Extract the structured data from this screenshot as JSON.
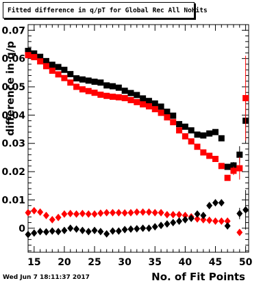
{
  "title": "Fitted difference in q/pT for Global Rec All NoHits",
  "timestamp": "Wed Jun  7 18:11:37 2017",
  "chart_data": {
    "type": "scatter",
    "xlabel": "No. of Fit Points",
    "ylabel": "difference in q/p",
    "xlim": [
      14,
      50.5
    ],
    "ylim": [
      -0.0085,
      0.072
    ],
    "x_ticks": [
      15,
      20,
      25,
      30,
      35,
      40,
      45,
      50
    ],
    "y_ticks": [
      {
        "value": 0,
        "label": "0"
      },
      {
        "value": 0.01,
        "label": "0.01"
      },
      {
        "value": 0.02,
        "label": "0.02"
      },
      {
        "value": 0.03,
        "label": "0.03"
      },
      {
        "value": 0.04,
        "label": "0.04"
      },
      {
        "value": 0.05,
        "label": "0.05"
      },
      {
        "value": 0.06,
        "label": "0.06"
      },
      {
        "value": 0.07,
        "label": "0.07"
      }
    ],
    "grid": false,
    "series": [
      {
        "marker": "square",
        "color": "#000000",
        "x": [
          14,
          15,
          16,
          17,
          18,
          19,
          20,
          21,
          22,
          23,
          24,
          25,
          26,
          27,
          28,
          29,
          30,
          31,
          32,
          33,
          34,
          35,
          36,
          37,
          38,
          39,
          40,
          41,
          42,
          43,
          44,
          45,
          46,
          47,
          48,
          49,
          50
        ],
        "y": [
          0.0627,
          0.0618,
          0.0606,
          0.0591,
          0.0578,
          0.057,
          0.056,
          0.0545,
          0.053,
          0.0526,
          0.0522,
          0.0518,
          0.0515,
          0.0505,
          0.0502,
          0.0497,
          0.0486,
          0.0478,
          0.0471,
          0.0459,
          0.045,
          0.0441,
          0.043,
          0.0412,
          0.0398,
          0.0368,
          0.0359,
          0.0346,
          0.0331,
          0.0328,
          0.0335,
          0.034,
          0.0318,
          0.0217,
          0.0222,
          0.026,
          0.038
        ],
        "err": [
          0,
          0,
          0,
          0,
          0,
          0,
          0,
          0,
          0,
          0,
          0,
          0,
          0,
          0,
          0,
          0,
          0,
          0,
          0,
          0,
          0,
          0,
          0,
          0,
          0,
          0,
          0,
          0,
          0,
          0,
          0,
          0,
          0,
          0.0008,
          0.0012,
          0.003,
          0.008
        ]
      },
      {
        "marker": "square",
        "color": "#ff0000",
        "x": [
          14,
          15,
          16,
          17,
          18,
          19,
          20,
          21,
          22,
          23,
          24,
          25,
          26,
          27,
          28,
          29,
          30,
          31,
          32,
          33,
          34,
          35,
          36,
          37,
          38,
          39,
          40,
          41,
          42,
          43,
          44,
          45,
          46,
          47,
          48,
          49,
          50
        ],
        "y": [
          0.0612,
          0.0605,
          0.059,
          0.0573,
          0.0557,
          0.0544,
          0.0531,
          0.0515,
          0.05,
          0.0491,
          0.0485,
          0.0479,
          0.0472,
          0.0468,
          0.0465,
          0.0463,
          0.046,
          0.0453,
          0.0446,
          0.0438,
          0.0431,
          0.0421,
          0.0408,
          0.0392,
          0.0375,
          0.0346,
          0.0325,
          0.0307,
          0.0288,
          0.0268,
          0.0256,
          0.0245,
          0.022,
          0.0178,
          0.0203,
          0.0212,
          0.046
        ],
        "err": [
          0,
          0,
          0,
          0,
          0,
          0,
          0,
          0,
          0,
          0,
          0,
          0,
          0,
          0,
          0,
          0,
          0,
          0,
          0,
          0,
          0,
          0,
          0,
          0,
          0,
          0,
          0,
          0,
          0,
          0,
          0,
          0,
          0,
          0.001,
          0.0015,
          0.004,
          0.015
        ]
      },
      {
        "marker": "diamond",
        "color": "#ff0000",
        "x": [
          14,
          15,
          16,
          17,
          18,
          19,
          20,
          21,
          22,
          23,
          24,
          25,
          26,
          27,
          28,
          29,
          30,
          31,
          32,
          33,
          34,
          35,
          36,
          37,
          38,
          39,
          40,
          41,
          42,
          43,
          44,
          45,
          46,
          47,
          49
        ],
        "y": [
          0.0055,
          0.0062,
          0.0057,
          0.0045,
          0.003,
          0.0038,
          0.005,
          0.0052,
          0.005,
          0.0052,
          0.005,
          0.005,
          0.0053,
          0.0055,
          0.0055,
          0.0055,
          0.0054,
          0.0055,
          0.0057,
          0.0057,
          0.0057,
          0.0055,
          0.0055,
          0.0048,
          0.0048,
          0.0048,
          0.0045,
          0.004,
          0.0033,
          0.003,
          0.0028,
          0.0025,
          0.0025,
          0.0025,
          -0.0015
        ],
        "err": [
          0,
          0,
          0,
          0,
          0,
          0,
          0,
          0,
          0,
          0,
          0,
          0,
          0,
          0,
          0,
          0,
          0,
          0,
          0,
          0,
          0,
          0,
          0,
          0,
          0,
          0,
          0,
          0,
          0,
          0,
          0,
          0,
          0,
          0,
          0
        ]
      },
      {
        "marker": "diamond",
        "color": "#000000",
        "x": [
          14,
          15,
          16,
          17,
          18,
          19,
          20,
          21,
          22,
          23,
          24,
          25,
          26,
          27,
          28,
          29,
          30,
          31,
          32,
          33,
          34,
          35,
          36,
          37,
          38,
          39,
          40,
          41,
          42,
          43,
          44,
          45,
          46,
          47,
          49,
          50
        ],
        "y": [
          -0.0022,
          -0.0017,
          -0.0012,
          -0.0013,
          -0.001,
          -0.0012,
          -0.0008,
          0.0,
          -0.0003,
          -0.0008,
          -0.0012,
          -0.0008,
          -0.0012,
          -0.002,
          -0.001,
          -0.001,
          -0.0005,
          -0.0003,
          -0.0002,
          0.0,
          0.0,
          0.0005,
          0.001,
          0.0015,
          0.002,
          0.0025,
          0.003,
          0.0035,
          0.005,
          0.0045,
          0.008,
          0.009,
          0.009,
          0.0008,
          0.0052,
          0.0065
        ],
        "err": [
          0,
          0,
          0,
          0,
          0,
          0,
          0,
          0,
          0,
          0,
          0,
          0,
          0,
          0,
          0,
          0,
          0,
          0,
          0,
          0,
          0,
          0,
          0,
          0,
          0,
          0,
          0,
          0,
          0,
          0,
          0,
          0,
          0,
          0,
          0.002,
          0.007
        ]
      }
    ]
  }
}
